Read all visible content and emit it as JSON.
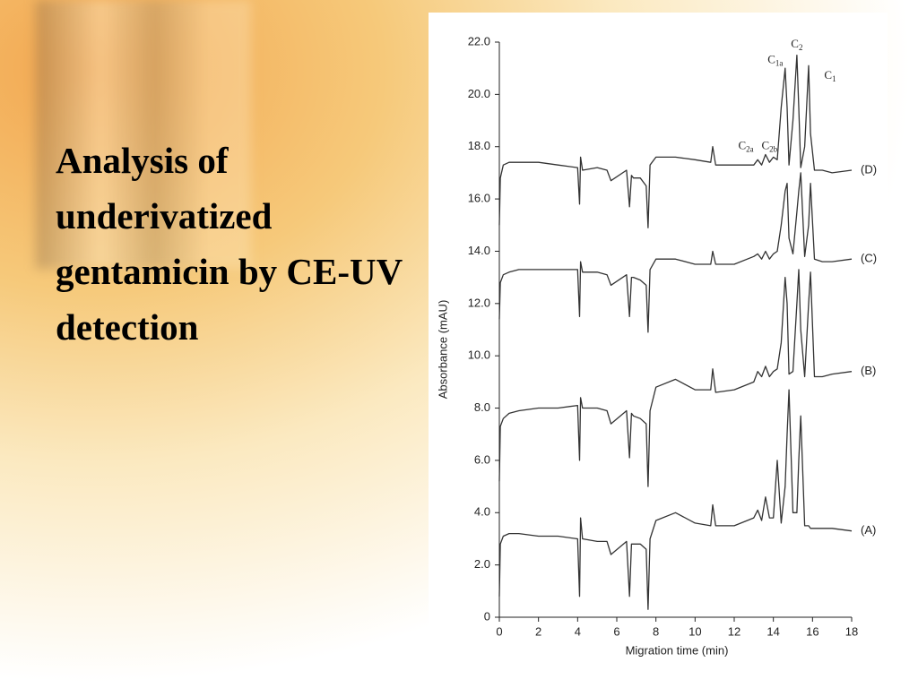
{
  "slide": {
    "title": "Analysis of underivatized gentamicin by CE-UV detection"
  },
  "chart_data": {
    "type": "line",
    "xlabel": "Migration time (min)",
    "ylabel": "Absorbance (mAU)",
    "xlim": [
      0,
      18
    ],
    "xticks": [
      0,
      2,
      4,
      6,
      8,
      10,
      12,
      14,
      16,
      18
    ],
    "ylim": [
      0,
      22
    ],
    "yticks": [
      0,
      {
        "value": 2,
        "label": "2.0"
      },
      {
        "value": 4,
        "label": "4.0"
      },
      {
        "value": 6,
        "label": "6.0"
      },
      {
        "value": 8,
        "label": "8.0"
      },
      {
        "value": 10,
        "label": "10.0"
      },
      {
        "value": 12,
        "label": "12.0"
      },
      {
        "value": 14,
        "label": "14.0"
      },
      {
        "value": 16,
        "label": "16.0"
      },
      {
        "value": 18,
        "label": "18.0"
      },
      {
        "value": 20,
        "label": "20.0"
      },
      {
        "value": 22,
        "label": "22.0"
      }
    ],
    "x": [
      0,
      0.05,
      0.2,
      0.5,
      1,
      2,
      3,
      4,
      4.1,
      4.15,
      4.25,
      5,
      5.5,
      5.7,
      6.5,
      6.65,
      6.75,
      6.85,
      7.2,
      7.5,
      7.6,
      7.7,
      8,
      9,
      10,
      10.8,
      10.9,
      11.05,
      12,
      13,
      13.2,
      13.4,
      13.6,
      13.8,
      14.0,
      14.2,
      14.4,
      14.6,
      14.7,
      14.8,
      15.0,
      15.2,
      15.3,
      15.4,
      15.6,
      15.8,
      15.9,
      16.1,
      16.5,
      17,
      18
    ],
    "series": [
      {
        "name": "(A)",
        "color": "#333333",
        "values": [
          0.8,
          2.8,
          3.1,
          3.2,
          3.2,
          3.1,
          3.1,
          3.0,
          0.8,
          3.8,
          3.0,
          2.9,
          2.9,
          2.4,
          2.9,
          0.8,
          2.8,
          2.8,
          2.8,
          2.6,
          0.3,
          3.0,
          3.7,
          4.0,
          3.6,
          3.5,
          4.3,
          3.5,
          3.5,
          3.8,
          4.1,
          3.7,
          4.6,
          3.8,
          3.8,
          6.0,
          3.6,
          5.0,
          7.0,
          8.7,
          4.0,
          4.0,
          6.0,
          7.7,
          3.5,
          3.5,
          3.4,
          3.4,
          3.4,
          3.4,
          3.3
        ]
      },
      {
        "name": "(B)",
        "color": "#333333",
        "values": [
          5.2,
          7.3,
          7.6,
          7.8,
          7.9,
          8.0,
          8.0,
          8.1,
          6.0,
          8.4,
          8.0,
          8.0,
          7.9,
          7.4,
          7.9,
          6.1,
          7.8,
          7.7,
          7.6,
          7.4,
          5.0,
          7.9,
          8.8,
          9.1,
          8.7,
          8.7,
          9.5,
          8.6,
          8.7,
          9.0,
          9.4,
          9.2,
          9.6,
          9.2,
          9.4,
          9.5,
          10.5,
          13.0,
          12.0,
          9.3,
          9.4,
          12.0,
          13.3,
          11.0,
          9.2,
          12.0,
          13.2,
          9.2,
          9.2,
          9.3,
          9.4
        ]
      },
      {
        "name": "(C)",
        "color": "#333333",
        "values": [
          11.4,
          12.8,
          13.1,
          13.2,
          13.3,
          13.3,
          13.3,
          13.3,
          11.5,
          13.6,
          13.2,
          13.2,
          13.1,
          12.7,
          13.1,
          11.5,
          13.0,
          13.0,
          12.9,
          12.7,
          10.9,
          13.3,
          13.7,
          13.7,
          13.5,
          13.5,
          14.0,
          13.5,
          13.5,
          13.8,
          13.9,
          13.7,
          14.0,
          13.7,
          13.9,
          14.0,
          15.0,
          16.3,
          16.6,
          14.5,
          13.9,
          15.5,
          16.3,
          17.0,
          13.8,
          15.0,
          16.6,
          13.7,
          13.6,
          13.6,
          13.7
        ]
      },
      {
        "name": "(D)",
        "color": "#333333",
        "values": [
          15.0,
          16.8,
          17.3,
          17.4,
          17.4,
          17.4,
          17.3,
          17.2,
          15.8,
          17.6,
          17.1,
          17.2,
          17.1,
          16.7,
          17.1,
          15.7,
          16.9,
          16.8,
          16.8,
          16.5,
          14.9,
          17.3,
          17.6,
          17.6,
          17.5,
          17.4,
          18.0,
          17.3,
          17.3,
          17.3,
          17.5,
          17.3,
          17.7,
          17.4,
          17.6,
          17.5,
          19.5,
          21.0,
          19.5,
          17.3,
          19.0,
          21.5,
          19.5,
          17.2,
          18.0,
          21.1,
          18.5,
          17.1,
          17.1,
          17.0,
          17.1
        ]
      }
    ],
    "annotations": [
      {
        "text": "C",
        "sub": "2a",
        "x": 12.6,
        "y": 18.0
      },
      {
        "text": "C",
        "sub": "2b",
        "x": 13.8,
        "y": 18.0
      },
      {
        "text": "C",
        "sub": "1a",
        "x": 14.1,
        "y": 21.3
      },
      {
        "text": "C",
        "sub": "2",
        "x": 15.2,
        "y": 21.9
      },
      {
        "text": "C",
        "sub": "1",
        "x": 16.9,
        "y": 20.7
      }
    ]
  }
}
